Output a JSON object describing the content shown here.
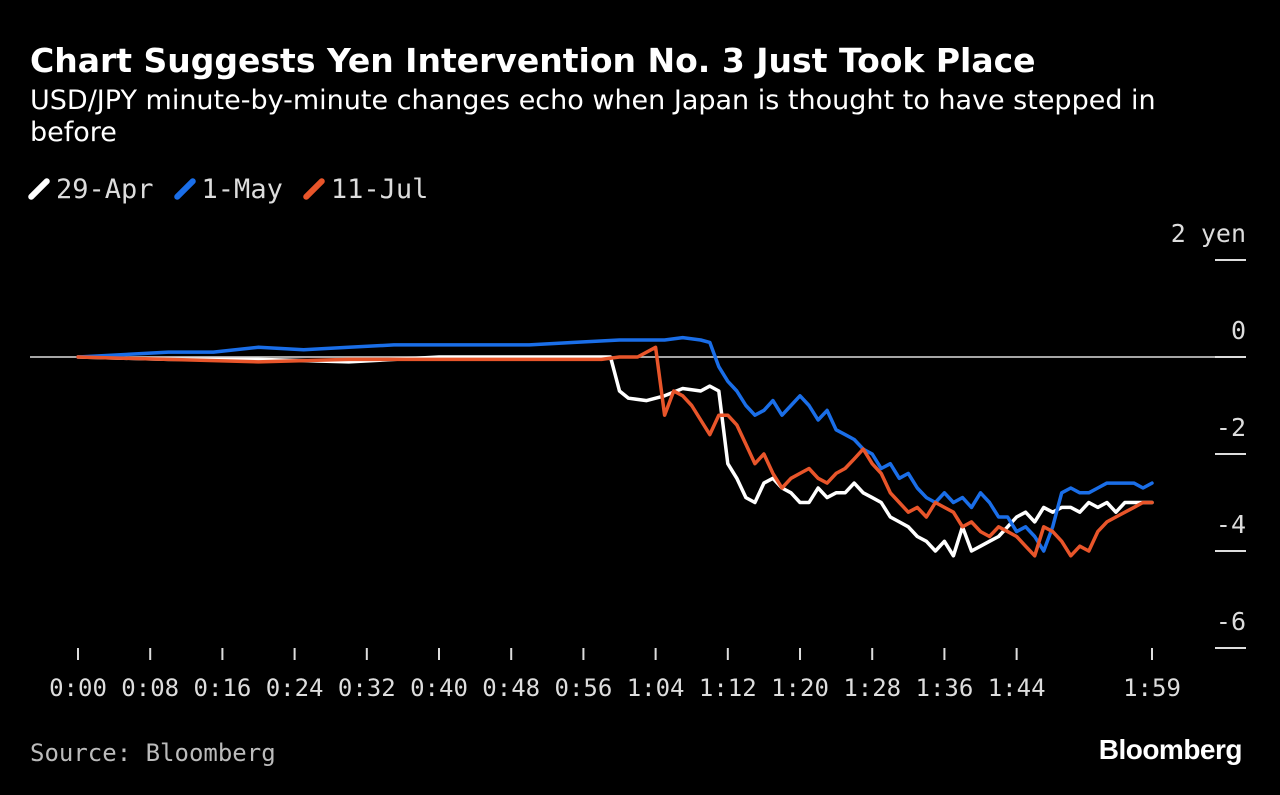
{
  "header": {
    "title": "Chart Suggests Yen Intervention No. 3 Just Took Place",
    "subtitle": "USD/JPY minute-by-minute changes echo when Japan is thought to have stepped in before"
  },
  "footer": {
    "source": "Source: Bloomberg",
    "brand": "Bloomberg"
  },
  "colors": {
    "background": "#000000",
    "apr29": "#ffffff",
    "may1": "#1a6ee8",
    "jul11": "#e8552a",
    "axis": "#cccccc"
  },
  "chart_data": {
    "type": "line",
    "title": "Chart Suggests Yen Intervention No. 3 Just Took Place",
    "subtitle": "USD/JPY minute-by-minute changes echo when Japan is thought to have stepped in before",
    "xlabel": "",
    "ylabel": "",
    "x_unit": "minutes",
    "x_ticks": [
      0,
      8,
      16,
      24,
      32,
      40,
      48,
      56,
      64,
      72,
      80,
      88,
      96,
      104,
      119
    ],
    "x_tick_labels": [
      "0:00",
      "0:08",
      "0:16",
      "0:24",
      "0:32",
      "0:40",
      "0:48",
      "0:56",
      "1:04",
      "1:12",
      "1:20",
      "1:28",
      "1:36",
      "1:44",
      "1:59"
    ],
    "xlim": [
      0,
      119
    ],
    "y_ticks": [
      2,
      0,
      -2,
      -4,
      -6
    ],
    "y_tick_labels": [
      "2 yen",
      "0",
      "-2",
      "-4",
      "-6"
    ],
    "ylim": [
      -6,
      2
    ],
    "y_axis_position": "right",
    "zero_line": true,
    "grid": false,
    "legend_position": "top-left",
    "series": [
      {
        "name": "29-Apr",
        "color": "#ffffff",
        "points": [
          [
            0,
            0
          ],
          [
            10,
            -0.05
          ],
          [
            20,
            -0.05
          ],
          [
            30,
            -0.1
          ],
          [
            40,
            0
          ],
          [
            50,
            0
          ],
          [
            59,
            0
          ],
          [
            60,
            -0.7
          ],
          [
            61,
            -0.85
          ],
          [
            63,
            -0.9
          ],
          [
            65,
            -0.8
          ],
          [
            67,
            -0.65
          ],
          [
            69,
            -0.7
          ],
          [
            70,
            -0.6
          ],
          [
            71,
            -0.7
          ],
          [
            72,
            -2.2
          ],
          [
            73,
            -2.5
          ],
          [
            74,
            -2.9
          ],
          [
            75,
            -3.0
          ],
          [
            76,
            -2.6
          ],
          [
            77,
            -2.5
          ],
          [
            78,
            -2.7
          ],
          [
            79,
            -2.8
          ],
          [
            80,
            -3.0
          ],
          [
            81,
            -3.0
          ],
          [
            82,
            -2.7
          ],
          [
            83,
            -2.9
          ],
          [
            84,
            -2.8
          ],
          [
            85,
            -2.8
          ],
          [
            86,
            -2.6
          ],
          [
            87,
            -2.8
          ],
          [
            88,
            -2.9
          ],
          [
            89,
            -3.0
          ],
          [
            90,
            -3.3
          ],
          [
            91,
            -3.4
          ],
          [
            92,
            -3.5
          ],
          [
            93,
            -3.7
          ],
          [
            94,
            -3.8
          ],
          [
            95,
            -4.0
          ],
          [
            96,
            -3.8
          ],
          [
            97,
            -4.1
          ],
          [
            98,
            -3.5
          ],
          [
            99,
            -4.0
          ],
          [
            100,
            -3.9
          ],
          [
            101,
            -3.8
          ],
          [
            102,
            -3.7
          ],
          [
            103,
            -3.5
          ],
          [
            104,
            -3.3
          ],
          [
            105,
            -3.2
          ],
          [
            106,
            -3.4
          ],
          [
            107,
            -3.1
          ],
          [
            108,
            -3.2
          ],
          [
            109,
            -3.1
          ],
          [
            110,
            -3.1
          ],
          [
            111,
            -3.2
          ],
          [
            112,
            -3.0
          ],
          [
            113,
            -3.1
          ],
          [
            114,
            -3.0
          ],
          [
            115,
            -3.2
          ],
          [
            116,
            -3.0
          ],
          [
            117,
            -3.0
          ],
          [
            118,
            -3.0
          ],
          [
            119,
            -3.0
          ]
        ]
      },
      {
        "name": "1-May",
        "color": "#1a6ee8",
        "points": [
          [
            0,
            0
          ],
          [
            5,
            0.05
          ],
          [
            10,
            0.1
          ],
          [
            15,
            0.1
          ],
          [
            20,
            0.2
          ],
          [
            25,
            0.15
          ],
          [
            30,
            0.2
          ],
          [
            35,
            0.25
          ],
          [
            40,
            0.25
          ],
          [
            45,
            0.25
          ],
          [
            50,
            0.25
          ],
          [
            55,
            0.3
          ],
          [
            60,
            0.35
          ],
          [
            65,
            0.35
          ],
          [
            67,
            0.4
          ],
          [
            69,
            0.35
          ],
          [
            70,
            0.3
          ],
          [
            71,
            -0.2
          ],
          [
            72,
            -0.5
          ],
          [
            73,
            -0.7
          ],
          [
            74,
            -1.0
          ],
          [
            75,
            -1.2
          ],
          [
            76,
            -1.1
          ],
          [
            77,
            -0.9
          ],
          [
            78,
            -1.2
          ],
          [
            79,
            -1.0
          ],
          [
            80,
            -0.8
          ],
          [
            81,
            -1.0
          ],
          [
            82,
            -1.3
          ],
          [
            83,
            -1.1
          ],
          [
            84,
            -1.5
          ],
          [
            85,
            -1.6
          ],
          [
            86,
            -1.7
          ],
          [
            87,
            -1.9
          ],
          [
            88,
            -2.0
          ],
          [
            89,
            -2.3
          ],
          [
            90,
            -2.2
          ],
          [
            91,
            -2.5
          ],
          [
            92,
            -2.4
          ],
          [
            93,
            -2.7
          ],
          [
            94,
            -2.9
          ],
          [
            95,
            -3.0
          ],
          [
            96,
            -2.8
          ],
          [
            97,
            -3.0
          ],
          [
            98,
            -2.9
          ],
          [
            99,
            -3.1
          ],
          [
            100,
            -2.8
          ],
          [
            101,
            -3.0
          ],
          [
            102,
            -3.3
          ],
          [
            103,
            -3.3
          ],
          [
            104,
            -3.6
          ],
          [
            105,
            -3.5
          ],
          [
            106,
            -3.7
          ],
          [
            107,
            -4.0
          ],
          [
            108,
            -3.5
          ],
          [
            109,
            -2.8
          ],
          [
            110,
            -2.7
          ],
          [
            111,
            -2.8
          ],
          [
            112,
            -2.8
          ],
          [
            113,
            -2.7
          ],
          [
            114,
            -2.6
          ],
          [
            115,
            -2.6
          ],
          [
            116,
            -2.6
          ],
          [
            117,
            -2.6
          ],
          [
            118,
            -2.7
          ],
          [
            119,
            -2.6
          ]
        ]
      },
      {
        "name": "11-Jul",
        "color": "#e8552a",
        "points": [
          [
            0,
            0
          ],
          [
            10,
            -0.05
          ],
          [
            20,
            -0.1
          ],
          [
            30,
            -0.05
          ],
          [
            40,
            -0.05
          ],
          [
            50,
            -0.05
          ],
          [
            58,
            -0.05
          ],
          [
            60,
            0
          ],
          [
            62,
            0
          ],
          [
            64,
            0.2
          ],
          [
            65,
            -1.2
          ],
          [
            66,
            -0.7
          ],
          [
            67,
            -0.8
          ],
          [
            68,
            -1.0
          ],
          [
            69,
            -1.3
          ],
          [
            70,
            -1.6
          ],
          [
            71,
            -1.2
          ],
          [
            72,
            -1.2
          ],
          [
            73,
            -1.4
          ],
          [
            74,
            -1.8
          ],
          [
            75,
            -2.2
          ],
          [
            76,
            -2.0
          ],
          [
            77,
            -2.4
          ],
          [
            78,
            -2.7
          ],
          [
            79,
            -2.5
          ],
          [
            80,
            -2.4
          ],
          [
            81,
            -2.3
          ],
          [
            82,
            -2.5
          ],
          [
            83,
            -2.6
          ],
          [
            84,
            -2.4
          ],
          [
            85,
            -2.3
          ],
          [
            86,
            -2.1
          ],
          [
            87,
            -1.9
          ],
          [
            88,
            -2.2
          ],
          [
            89,
            -2.4
          ],
          [
            90,
            -2.8
          ],
          [
            91,
            -3.0
          ],
          [
            92,
            -3.2
          ],
          [
            93,
            -3.1
          ],
          [
            94,
            -3.3
          ],
          [
            95,
            -3.0
          ],
          [
            96,
            -3.1
          ],
          [
            97,
            -3.2
          ],
          [
            98,
            -3.5
          ],
          [
            99,
            -3.4
          ],
          [
            100,
            -3.6
          ],
          [
            101,
            -3.7
          ],
          [
            102,
            -3.5
          ],
          [
            103,
            -3.6
          ],
          [
            104,
            -3.7
          ],
          [
            105,
            -3.9
          ],
          [
            106,
            -4.1
          ],
          [
            107,
            -3.5
          ],
          [
            108,
            -3.6
          ],
          [
            109,
            -3.8
          ],
          [
            110,
            -4.1
          ],
          [
            111,
            -3.9
          ],
          [
            112,
            -4.0
          ],
          [
            113,
            -3.6
          ],
          [
            114,
            -3.4
          ],
          [
            115,
            -3.3
          ],
          [
            116,
            -3.2
          ],
          [
            117,
            -3.1
          ],
          [
            118,
            -3.0
          ],
          [
            119,
            -3.0
          ]
        ]
      }
    ]
  }
}
